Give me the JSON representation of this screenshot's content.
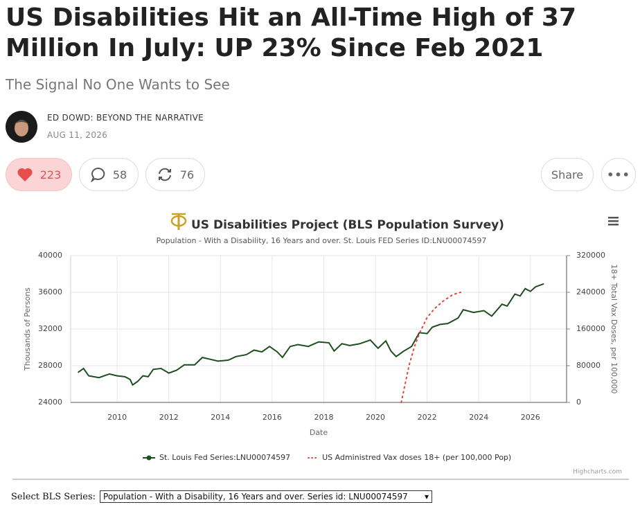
{
  "header": {
    "title": "US Disabilities Hit an All-Time High of 37 Million In July: UP 23% Since Feb 2021",
    "subtitle": "The Signal No One Wants to See"
  },
  "author": {
    "name": "ED DOWD: BEYOND THE NARRATIVE",
    "date": "AUG 11, 2026"
  },
  "actions": {
    "likes": 223,
    "comments": 58,
    "restacks": 76,
    "share": "Share"
  },
  "chart_data": {
    "type": "line",
    "title": "US Disabilities Project (BLS Population Survey)",
    "subtitle": "Population - With a Disability, 16 Years and over. St. Louis FED Series ID:LNU00074597",
    "x_label": "Date",
    "y_label": "Thousands of Persons",
    "y2_label": "18+ Total Vax Doses, per 100,000",
    "xlim": [
      2008.2,
      2027.4
    ],
    "xticks": [
      2010,
      2012,
      2014,
      2016,
      2018,
      2020,
      2022,
      2024,
      2026
    ],
    "ylim": [
      24000,
      40000
    ],
    "yticks": [
      24000,
      28000,
      32000,
      36000,
      40000
    ],
    "y2lim": [
      0,
      320000
    ],
    "y2ticks": [
      0,
      80000,
      160000,
      240000,
      320000
    ],
    "grid": true,
    "legend": "bottom",
    "credit": "Highcharts.com",
    "series": [
      {
        "name": "St. Louis Fed Series:LNU00074597",
        "color": "#1e4d1e",
        "style": "solid",
        "x": [
          2008.5,
          2008.7,
          2008.9,
          2009.3,
          2009.7,
          2010.0,
          2010.3,
          2010.5,
          2010.6,
          2010.8,
          2011.0,
          2011.2,
          2011.4,
          2011.7,
          2012.0,
          2012.3,
          2012.6,
          2013.0,
          2013.3,
          2013.6,
          2013.9,
          2014.3,
          2014.6,
          2015.0,
          2015.3,
          2015.6,
          2015.9,
          2016.2,
          2016.4,
          2016.7,
          2017.0,
          2017.4,
          2017.8,
          2018.2,
          2018.4,
          2018.7,
          2019.0,
          2019.4,
          2019.8,
          2020.1,
          2020.4,
          2020.6,
          2020.8,
          2021.1,
          2021.4,
          2021.7,
          2022.0,
          2022.2,
          2022.5,
          2022.8,
          2023.2,
          2023.4,
          2023.8,
          2024.2,
          2024.5,
          2024.9,
          2025.1,
          2025.4,
          2025.6,
          2025.8,
          2026.0,
          2026.2,
          2026.5
        ],
        "values": [
          27300,
          27700,
          26900,
          26700,
          27100,
          26900,
          26800,
          26500,
          25900,
          26300,
          26900,
          26800,
          27600,
          27700,
          27200,
          27500,
          28100,
          28100,
          28900,
          28700,
          28500,
          28600,
          29000,
          29200,
          29700,
          29500,
          30100,
          29500,
          28900,
          30100,
          30300,
          30100,
          30600,
          30500,
          29600,
          30400,
          30200,
          30400,
          30800,
          29900,
          30700,
          29600,
          29000,
          29600,
          30100,
          31600,
          31500,
          32200,
          32500,
          32600,
          33200,
          34100,
          33800,
          34000,
          33400,
          34700,
          34500,
          35800,
          35600,
          36400,
          36100,
          36600,
          36900
        ]
      },
      {
        "name": "US Administred Vax doses 18+ (per 100,000 Pop)",
        "color": "#e0453a",
        "style": "dotted",
        "axis": "y2",
        "x": [
          2021.0,
          2021.15,
          2021.3,
          2021.5,
          2021.7,
          2022.0,
          2022.3,
          2022.6,
          2023.0,
          2023.3
        ],
        "values": [
          0,
          40000,
          80000,
          120000,
          150000,
          185000,
          205000,
          220000,
          235000,
          240000
        ]
      }
    ]
  },
  "select": {
    "label": "Select BLS Series:",
    "option": "Population - With a Disability, 16 Years and over. Series id: LNU00074597"
  }
}
